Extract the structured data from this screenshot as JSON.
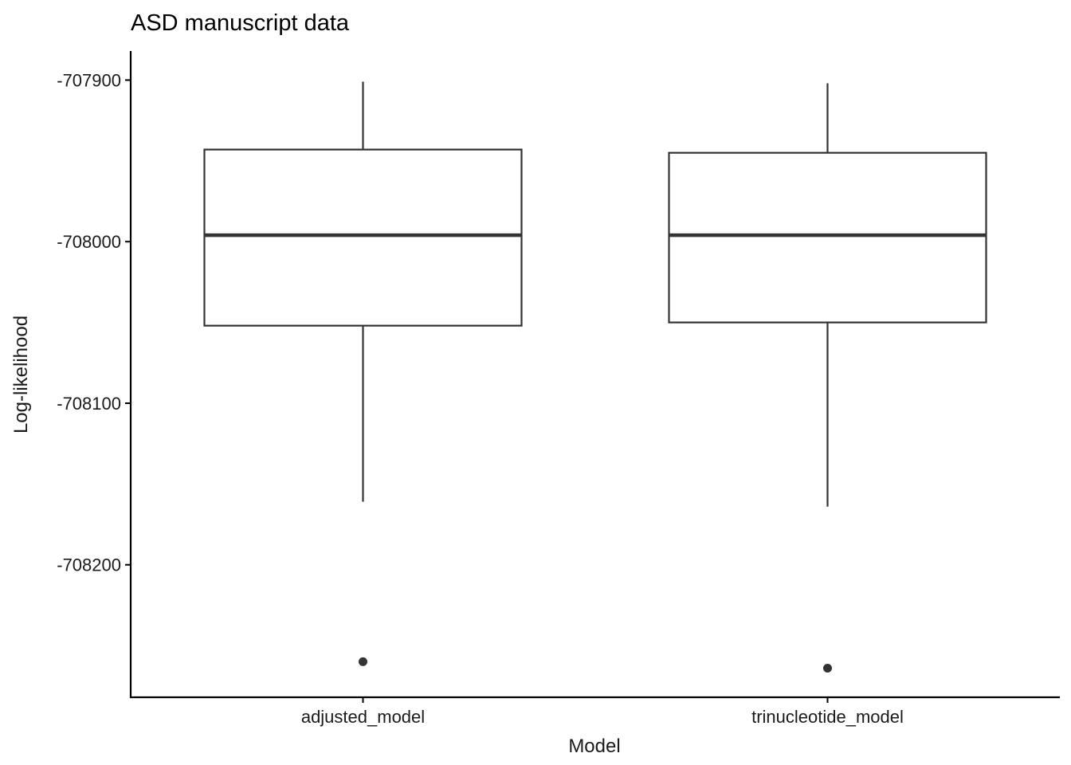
{
  "chart_data": {
    "type": "box",
    "title": "ASD manuscript data",
    "xlabel": "Model",
    "ylabel": "Log-likelihood",
    "categories": [
      "adjusted_model",
      "trinucleotide_model"
    ],
    "yticks": [
      -707900,
      -708000,
      -708100,
      -708200
    ],
    "ytick_labels": [
      "-707900",
      "-708000",
      "-708100",
      "-708200"
    ],
    "ylim": [
      -708282,
      -707882
    ],
    "grid": false,
    "boxes": [
      {
        "category": "adjusted_model",
        "whisker_high": -707901,
        "q3": -707943,
        "median": -707996,
        "q1": -708052,
        "whisker_low": -708161,
        "outliers": [
          -708260
        ]
      },
      {
        "category": "trinucleotide_model",
        "whisker_high": -707902,
        "q3": -707945,
        "median": -707996,
        "q1": -708050,
        "whisker_low": -708164,
        "outliers": [
          -708264
        ]
      }
    ]
  }
}
